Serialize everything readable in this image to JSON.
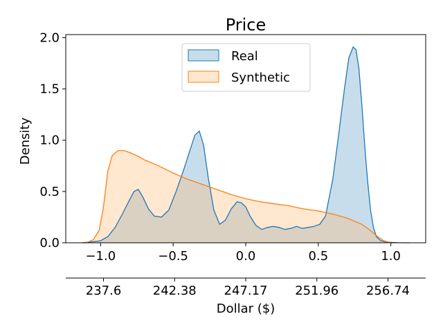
{
  "chart_data": {
    "type": "area",
    "title": "Price",
    "ylabel": "Density",
    "xlabel": "Dollar ($)",
    "xlim": [
      -1.24,
      1.24
    ],
    "ylim": [
      0,
      2.03
    ],
    "x_ticks": [
      "−1.0",
      "−0.5",
      "0.0",
      "0.5",
      "1.0"
    ],
    "x_tick_values": [
      -1.0,
      -0.5,
      0.0,
      0.5,
      1.0
    ],
    "y_ticks": [
      "0.0",
      "0.5",
      "1.0",
      "1.5",
      "2.0"
    ],
    "y_tick_values": [
      0.0,
      0.5,
      1.0,
      1.5,
      2.0
    ],
    "secondary_x_ticks": [
      "237.6",
      "242.38",
      "247.17",
      "251.96",
      "256.74"
    ],
    "secondary_x_tick_positions": [
      -0.98,
      -0.49,
      0.0,
      0.49,
      0.98
    ],
    "legend_position": "top-center",
    "grid": false,
    "series": [
      {
        "name": "Real",
        "color": "#1f77b4",
        "fill": "#1f77b4",
        "x": [
          -1.13,
          -1.05,
          -1.0,
          -0.95,
          -0.9,
          -0.85,
          -0.8,
          -0.77,
          -0.74,
          -0.71,
          -0.67,
          -0.63,
          -0.58,
          -0.53,
          -0.48,
          -0.43,
          -0.38,
          -0.35,
          -0.32,
          -0.29,
          -0.26,
          -0.22,
          -0.18,
          -0.14,
          -0.1,
          -0.06,
          -0.03,
          0.0,
          0.03,
          0.07,
          0.11,
          0.15,
          0.19,
          0.23,
          0.27,
          0.31,
          0.35,
          0.39,
          0.43,
          0.47,
          0.51,
          0.55,
          0.6,
          0.64,
          0.68,
          0.71,
          0.74,
          0.76,
          0.78,
          0.8,
          0.82,
          0.84,
          0.86,
          0.88,
          0.9,
          0.93,
          0.96,
          1.0,
          1.05,
          1.13
        ],
        "y": [
          0.0,
          0.01,
          0.02,
          0.06,
          0.15,
          0.28,
          0.42,
          0.5,
          0.52,
          0.45,
          0.33,
          0.26,
          0.25,
          0.32,
          0.5,
          0.7,
          0.92,
          1.05,
          1.09,
          0.95,
          0.65,
          0.32,
          0.18,
          0.22,
          0.33,
          0.4,
          0.39,
          0.35,
          0.26,
          0.17,
          0.13,
          0.15,
          0.16,
          0.15,
          0.13,
          0.14,
          0.16,
          0.14,
          0.15,
          0.16,
          0.18,
          0.26,
          0.62,
          1.05,
          1.5,
          1.8,
          1.91,
          1.88,
          1.7,
          1.35,
          0.95,
          0.6,
          0.32,
          0.15,
          0.06,
          0.02,
          0.01,
          0.004,
          0.001,
          0.0
        ]
      },
      {
        "name": "Synthetic",
        "color": "#ff7f0e",
        "fill": "#ffbb78",
        "x": [
          -1.1,
          -1.05,
          -1.01,
          -0.98,
          -0.95,
          -0.92,
          -0.88,
          -0.84,
          -0.8,
          -0.75,
          -0.7,
          -0.6,
          -0.5,
          -0.4,
          -0.3,
          -0.2,
          -0.1,
          0.0,
          0.1,
          0.2,
          0.3,
          0.4,
          0.5,
          0.6,
          0.7,
          0.75,
          0.8,
          0.85,
          0.9,
          0.95,
          1.0
        ],
        "y": [
          0.0,
          0.03,
          0.12,
          0.35,
          0.7,
          0.85,
          0.9,
          0.9,
          0.88,
          0.85,
          0.81,
          0.75,
          0.68,
          0.62,
          0.57,
          0.52,
          0.47,
          0.43,
          0.4,
          0.38,
          0.36,
          0.33,
          0.31,
          0.28,
          0.24,
          0.21,
          0.18,
          0.13,
          0.07,
          0.02,
          0.0
        ]
      }
    ]
  }
}
